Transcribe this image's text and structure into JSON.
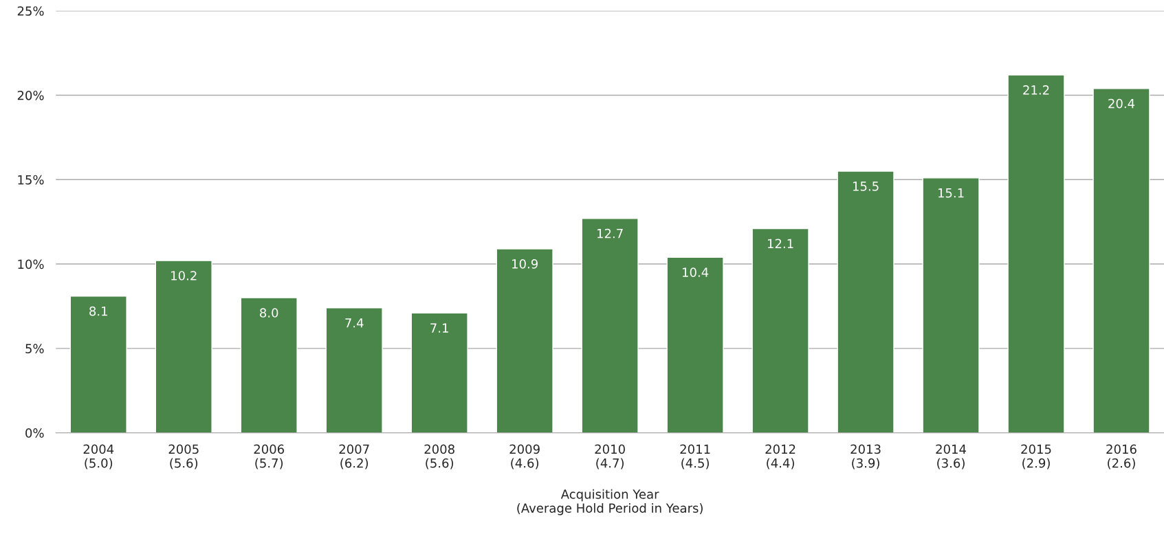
{
  "chart_data": {
    "type": "bar",
    "xlabel": "Acquisition Year\n(Average Hold Period in Years)",
    "categories": [
      "2004\n(5.0)",
      "2005\n(5.6)",
      "2006\n(5.7)",
      "2007\n(6.2)",
      "2008\n(5.6)",
      "2009\n(4.6)",
      "2010\n(4.7)",
      "2011\n(4.5)",
      "2012\n(4.4)",
      "2013\n(3.9)",
      "2014\n(3.6)",
      "2015\n(2.9)",
      "2016\n(2.6)"
    ],
    "values": [
      8.1,
      10.2,
      8.0,
      7.4,
      7.1,
      10.9,
      12.7,
      10.4,
      12.1,
      15.5,
      15.1,
      21.2,
      20.4
    ],
    "value_labels": [
      "8.1",
      "10.2",
      "8.0",
      "7.4",
      "7.1",
      "10.9",
      "12.7",
      "10.4",
      "12.1",
      "15.5",
      "15.1",
      "21.2",
      "20.4"
    ],
    "color": "#4a8549",
    "ylim": [
      0,
      25
    ],
    "yticks": [
      {
        "value": 0,
        "label": "0%"
      },
      {
        "value": 5,
        "label": "5%"
      },
      {
        "value": 10,
        "label": "10%"
      },
      {
        "value": 15,
        "label": "15%"
      },
      {
        "value": 20,
        "label": "20%"
      },
      {
        "value": 25,
        "label": "25%"
      }
    ],
    "grid": "y"
  }
}
